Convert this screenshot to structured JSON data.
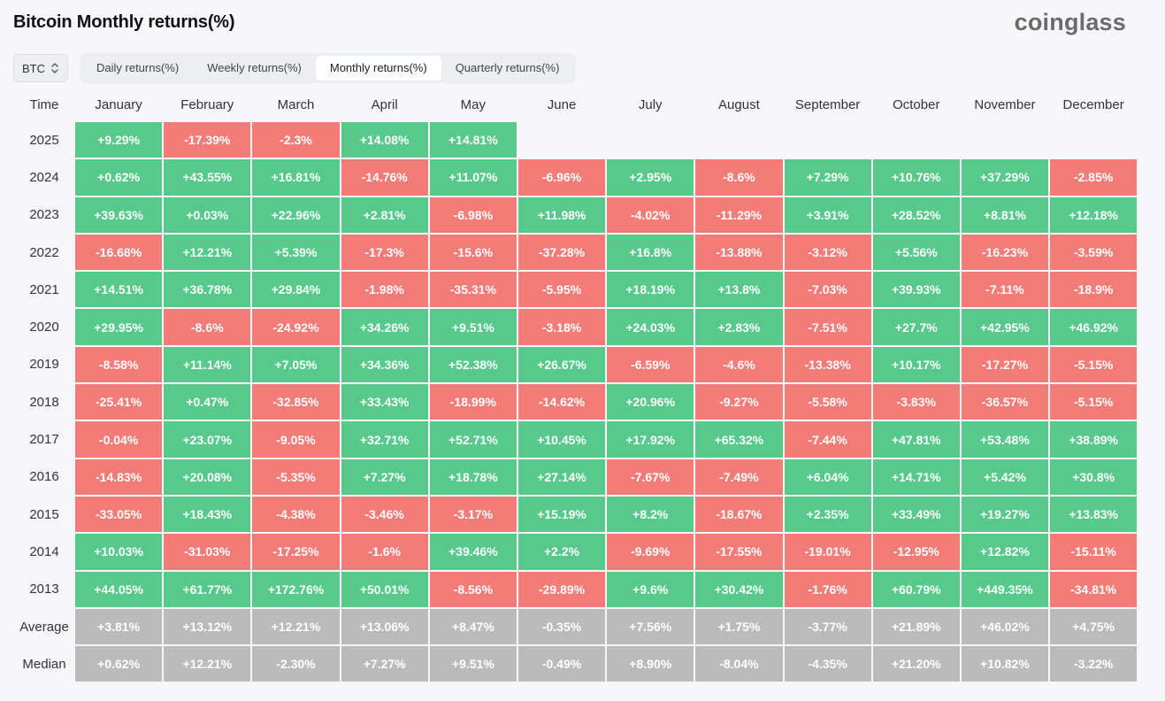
{
  "title": "Bitcoin Monthly returns(%)",
  "brand": "coinglass",
  "symbol_select": {
    "value": "BTC"
  },
  "tabs": [
    {
      "label": "Daily returns(%)",
      "active": false
    },
    {
      "label": "Weekly returns(%)",
      "active": false
    },
    {
      "label": "Monthly returns(%)",
      "active": true
    },
    {
      "label": "Quarterly returns(%)",
      "active": false
    }
  ],
  "colors": {
    "positive": "#57c98a",
    "negative": "#f47c78",
    "summary": "#bbbbbb"
  },
  "table": {
    "time_header": "Time",
    "months": [
      "January",
      "February",
      "March",
      "April",
      "May",
      "June",
      "July",
      "August",
      "September",
      "October",
      "November",
      "December"
    ],
    "rows": [
      {
        "label": "2025",
        "cells": [
          "+9.29%",
          "-17.39%",
          "-2.3%",
          "+14.08%",
          "+14.81%",
          "",
          "",
          "",
          "",
          "",
          "",
          ""
        ]
      },
      {
        "label": "2024",
        "cells": [
          "+0.62%",
          "+43.55%",
          "+16.81%",
          "-14.76%",
          "+11.07%",
          "-6.96%",
          "+2.95%",
          "-8.6%",
          "+7.29%",
          "+10.76%",
          "+37.29%",
          "-2.85%"
        ]
      },
      {
        "label": "2023",
        "cells": [
          "+39.63%",
          "+0.03%",
          "+22.96%",
          "+2.81%",
          "-6.98%",
          "+11.98%",
          "-4.02%",
          "-11.29%",
          "+3.91%",
          "+28.52%",
          "+8.81%",
          "+12.18%"
        ]
      },
      {
        "label": "2022",
        "cells": [
          "-16.68%",
          "+12.21%",
          "+5.39%",
          "-17.3%",
          "-15.6%",
          "-37.28%",
          "+16.8%",
          "-13.88%",
          "-3.12%",
          "+5.56%",
          "-16.23%",
          "-3.59%"
        ]
      },
      {
        "label": "2021",
        "cells": [
          "+14.51%",
          "+36.78%",
          "+29.84%",
          "-1.98%",
          "-35.31%",
          "-5.95%",
          "+18.19%",
          "+13.8%",
          "-7.03%",
          "+39.93%",
          "-7.11%",
          "-18.9%"
        ]
      },
      {
        "label": "2020",
        "cells": [
          "+29.95%",
          "-8.6%",
          "-24.92%",
          "+34.26%",
          "+9.51%",
          "-3.18%",
          "+24.03%",
          "+2.83%",
          "-7.51%",
          "+27.7%",
          "+42.95%",
          "+46.92%"
        ]
      },
      {
        "label": "2019",
        "cells": [
          "-8.58%",
          "+11.14%",
          "+7.05%",
          "+34.36%",
          "+52.38%",
          "+26.67%",
          "-6.59%",
          "-4.6%",
          "-13.38%",
          "+10.17%",
          "-17.27%",
          "-5.15%"
        ]
      },
      {
        "label": "2018",
        "cells": [
          "-25.41%",
          "+0.47%",
          "-32.85%",
          "+33.43%",
          "-18.99%",
          "-14.62%",
          "+20.96%",
          "-9.27%",
          "-5.58%",
          "-3.83%",
          "-36.57%",
          "-5.15%"
        ]
      },
      {
        "label": "2017",
        "cells": [
          "-0.04%",
          "+23.07%",
          "-9.05%",
          "+32.71%",
          "+52.71%",
          "+10.45%",
          "+17.92%",
          "+65.32%",
          "-7.44%",
          "+47.81%",
          "+53.48%",
          "+38.89%"
        ]
      },
      {
        "label": "2016",
        "cells": [
          "-14.83%",
          "+20.08%",
          "-5.35%",
          "+7.27%",
          "+18.78%",
          "+27.14%",
          "-7.67%",
          "-7.49%",
          "+6.04%",
          "+14.71%",
          "+5.42%",
          "+30.8%"
        ]
      },
      {
        "label": "2015",
        "cells": [
          "-33.05%",
          "+18.43%",
          "-4.38%",
          "-3.46%",
          "-3.17%",
          "+15.19%",
          "+8.2%",
          "-18.67%",
          "+2.35%",
          "+33.49%",
          "+19.27%",
          "+13.83%"
        ]
      },
      {
        "label": "2014",
        "cells": [
          "+10.03%",
          "-31.03%",
          "-17.25%",
          "-1.6%",
          "+39.46%",
          "+2.2%",
          "-9.69%",
          "-17.55%",
          "-19.01%",
          "-12.95%",
          "+12.82%",
          "-15.11%"
        ]
      },
      {
        "label": "2013",
        "cells": [
          "+44.05%",
          "+61.77%",
          "+172.76%",
          "+50.01%",
          "-8.56%",
          "-29.89%",
          "+9.6%",
          "+30.42%",
          "-1.76%",
          "+60.79%",
          "+449.35%",
          "-34.81%"
        ]
      }
    ],
    "summary_rows": [
      {
        "label": "Average",
        "cells": [
          "+3.81%",
          "+13.12%",
          "+12.21%",
          "+13.06%",
          "+8.47%",
          "-0.35%",
          "+7.56%",
          "+1.75%",
          "-3.77%",
          "+21.89%",
          "+46.02%",
          "+4.75%"
        ]
      },
      {
        "label": "Median",
        "cells": [
          "+0.62%",
          "+12.21%",
          "-2.30%",
          "+7.27%",
          "+9.51%",
          "-0.49%",
          "+8.90%",
          "-8.04%",
          "-4.35%",
          "+21.20%",
          "+10.82%",
          "-3.22%"
        ]
      }
    ]
  }
}
